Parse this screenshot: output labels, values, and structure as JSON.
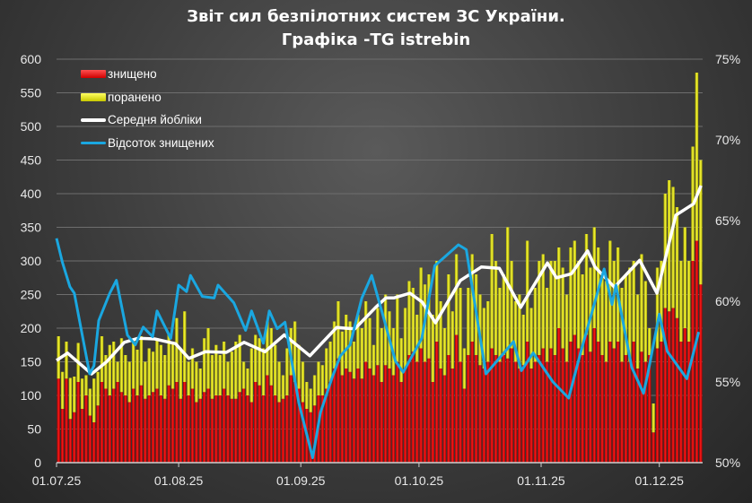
{
  "chart_data": {
    "type": "bar",
    "title": [
      "Звіт сил безпілотних систем ЗС України.",
      "Графіка -TG istrebin"
    ],
    "xlabel": "",
    "ylabel": "",
    "ylim": [
      0,
      600
    ],
    "y2lim": [
      50,
      75
    ],
    "yticks": [
      "0",
      "50",
      "100",
      "150",
      "200",
      "250",
      "300",
      "350",
      "400",
      "450",
      "500",
      "550",
      "600"
    ],
    "y2ticks": [
      "50%",
      "55%",
      "60%",
      "65%",
      "70%",
      "75%"
    ],
    "xticks": [
      {
        "day": 0,
        "label": "01.07.25"
      },
      {
        "day": 31,
        "label": "01.08.25"
      },
      {
        "day": 62,
        "label": "01.09.25"
      },
      {
        "day": 92,
        "label": "01.10.25"
      },
      {
        "day": 123,
        "label": "01.11.25"
      },
      {
        "day": 153,
        "label": "01.12.25"
      }
    ],
    "grid": true,
    "legend_position": "top-left",
    "colors": {
      "destroyed": "#e00000",
      "wounded": "#e6e61a",
      "average": "#ffffff",
      "percent": "#1aa7e0"
    },
    "legend": [
      "знищено",
      "поранено",
      "Середня йобліки",
      "Відсоток знищених"
    ],
    "series": [
      {
        "name": "знищено",
        "axis": "left",
        "values": [
          125,
          80,
          125,
          65,
          75,
          120,
          80,
          100,
          70,
          60,
          85,
          120,
          110,
          100,
          110,
          120,
          105,
          100,
          90,
          110,
          100,
          115,
          95,
          100,
          105,
          110,
          100,
          95,
          115,
          110,
          120,
          95,
          120,
          100,
          110,
          90,
          95,
          105,
          110,
          95,
          100,
          100,
          110,
          100,
          95,
          95,
          105,
          110,
          100,
          90,
          120,
          115,
          100,
          130,
          115,
          100,
          90,
          95,
          100,
          130,
          120,
          110,
          90,
          80,
          75,
          85,
          100,
          100,
          110,
          120,
          140,
          155,
          130,
          140,
          135,
          125,
          140,
          125,
          150,
          140,
          130,
          145,
          120,
          145,
          140,
          130,
          150,
          120,
          140,
          160,
          165,
          150,
          170,
          150,
          155,
          120,
          180,
          140,
          130,
          160,
          140,
          190,
          150,
          110,
          160,
          180,
          160,
          145,
          140,
          150,
          170,
          160,
          150,
          160,
          155,
          170,
          150,
          140,
          145,
          180,
          140,
          150,
          160,
          170,
          150,
          170,
          160,
          200,
          170,
          150,
          180,
          190,
          170,
          160,
          190,
          165,
          200,
          180,
          160,
          150,
          180,
          170,
          180,
          150,
          160,
          150,
          180,
          140,
          165,
          150,
          160,
          45,
          170,
          180,
          230,
          225,
          230,
          215,
          180,
          200,
          180,
          300,
          330,
          265
        ]
      },
      {
        "name": "знищено + поранено (stack total)",
        "axis": "left",
        "values": [
          188,
          135,
          180,
          126,
          128,
          178,
          125,
          130,
          110,
          125,
          135,
          188,
          160,
          175,
          180,
          150,
          185,
          160,
          150,
          182,
          168,
          188,
          150,
          170,
          165,
          185,
          175,
          160,
          190,
          180,
          215,
          170,
          225,
          150,
          170,
          150,
          140,
          185,
          200,
          160,
          175,
          160,
          180,
          150,
          165,
          180,
          190,
          150,
          140,
          170,
          190,
          185,
          170,
          210,
          200,
          175,
          150,
          130,
          170,
          200,
          210,
          175,
          150,
          120,
          110,
          130,
          150,
          145,
          170,
          180,
          210,
          240,
          195,
          220,
          210,
          180,
          220,
          200,
          240,
          215,
          175,
          230,
          200,
          250,
          225,
          200,
          250,
          185,
          230,
          270,
          260,
          220,
          290,
          265,
          280,
          220,
          300,
          240,
          200,
          280,
          225,
          310,
          260,
          170,
          260,
          310,
          280,
          250,
          230,
          240,
          340,
          300,
          260,
          280,
          350,
          300,
          240,
          250,
          220,
          330,
          230,
          260,
          300,
          310,
          260,
          300,
          300,
          320,
          290,
          250,
          320,
          330,
          300,
          280,
          340,
          290,
          350,
          320,
          280,
          270,
          330,
          300,
          320,
          260,
          280,
          290,
          300,
          250,
          310,
          270,
          200,
          88,
          290,
          300,
          400,
          420,
          410,
          380,
          300,
          350,
          300,
          470,
          580,
          450
        ]
      },
      {
        "name": "Середня йобліки",
        "axis": "left",
        "type": "line",
        "points": [
          [
            0,
            152
          ],
          [
            2.8,
            163
          ],
          [
            8.9,
            132
          ],
          [
            12.7,
            150
          ],
          [
            17.2,
            179
          ],
          [
            20.7,
            185
          ],
          [
            24.9,
            184
          ],
          [
            30.2,
            177
          ],
          [
            33.6,
            155
          ],
          [
            37.8,
            165
          ],
          [
            43.1,
            164
          ],
          [
            47.6,
            179
          ],
          [
            52.9,
            165
          ],
          [
            57.8,
            190
          ],
          [
            64.3,
            159
          ],
          [
            71.1,
            201
          ],
          [
            75.7,
            199
          ],
          [
            81,
            231
          ],
          [
            83.6,
            245
          ],
          [
            85.6,
            245
          ],
          [
            89.7,
            252
          ],
          [
            92.8,
            239
          ],
          [
            96.2,
            208
          ],
          [
            102.5,
            271
          ],
          [
            107.8,
            291
          ],
          [
            112.4,
            289
          ],
          [
            117.8,
            231
          ],
          [
            124.6,
            297
          ],
          [
            126.9,
            275
          ],
          [
            130.7,
            281
          ],
          [
            134.8,
            315
          ],
          [
            136.7,
            291
          ],
          [
            141.6,
            261
          ],
          [
            148,
            301
          ],
          [
            152.4,
            252
          ],
          [
            157.2,
            368
          ],
          [
            161.7,
            385
          ],
          [
            163.6,
            412
          ]
        ]
      },
      {
        "name": "Відсоток знищених",
        "axis": "right",
        "type": "line",
        "points": [
          [
            0,
            63.9
          ],
          [
            1.5,
            62.4
          ],
          [
            3.4,
            60.9
          ],
          [
            4.5,
            60.5
          ],
          [
            8.4,
            55.5
          ],
          [
            9.5,
            56
          ],
          [
            10.7,
            58.8
          ],
          [
            13.5,
            60.5
          ],
          [
            15.2,
            61.3
          ],
          [
            18,
            57.9
          ],
          [
            20,
            57.3
          ],
          [
            22,
            58.4
          ],
          [
            24.4,
            57.8
          ],
          [
            25.5,
            59.4
          ],
          [
            29,
            57.7
          ],
          [
            31,
            61
          ],
          [
            33,
            60.6
          ],
          [
            34,
            61.6
          ],
          [
            37,
            60.3
          ],
          [
            40,
            60.2
          ],
          [
            41,
            61
          ],
          [
            45,
            59.9
          ],
          [
            48,
            58.2
          ],
          [
            49.5,
            59.4
          ],
          [
            52.5,
            57.4
          ],
          [
            54,
            59.4
          ],
          [
            56,
            58.3
          ],
          [
            58,
            58.7
          ],
          [
            61.5,
            53.7
          ],
          [
            65,
            50.3
          ],
          [
            67,
            53.1
          ],
          [
            70,
            55.3
          ],
          [
            72,
            56.6
          ],
          [
            74.5,
            57.3
          ],
          [
            77.5,
            60.2
          ],
          [
            80,
            61.6
          ],
          [
            83,
            59
          ],
          [
            86,
            56.3
          ],
          [
            88,
            55.6
          ],
          [
            92.7,
            57.7
          ],
          [
            96,
            62.2
          ],
          [
            102,
            63.5
          ],
          [
            104,
            63.2
          ],
          [
            109,
            55.5
          ],
          [
            116,
            57.5
          ],
          [
            118,
            55.7
          ],
          [
            121,
            56.8
          ],
          [
            126,
            55
          ],
          [
            130,
            54
          ],
          [
            133,
            56.8
          ],
          [
            139,
            62
          ],
          [
            141,
            59.8
          ],
          [
            142,
            61
          ],
          [
            146,
            55.9
          ],
          [
            149,
            54.3
          ],
          [
            150,
            55.4
          ],
          [
            153,
            59.2
          ],
          [
            155,
            56.9
          ],
          [
            160,
            55.2
          ],
          [
            163,
            58.1
          ]
        ]
      }
    ]
  }
}
